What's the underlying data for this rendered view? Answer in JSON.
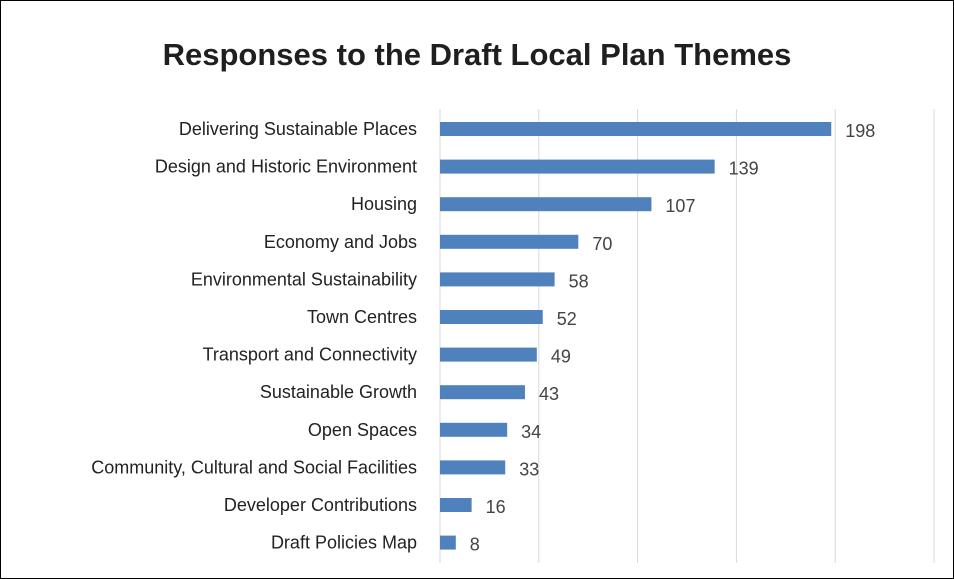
{
  "chart_data": {
    "type": "bar",
    "orientation": "horizontal",
    "title": "Responses to the Draft Local Plan Themes",
    "xlabel": "",
    "ylabel": "",
    "categories": [
      "Delivering Sustainable Places",
      "Design and Historic Environment",
      "Housing",
      "Economy and Jobs",
      "Environmental Sustainability",
      "Town Centres",
      "Transport and Connectivity",
      "Sustainable Growth",
      "Open Spaces",
      "Community, Cultural and Social Facilities",
      "Developer Contributions",
      "Draft Policies Map"
    ],
    "values": [
      198,
      139,
      107,
      70,
      58,
      52,
      49,
      43,
      34,
      33,
      16,
      8
    ],
    "data_labels": [
      "198",
      "139",
      "107",
      "70",
      "58",
      "52",
      "49",
      "43",
      "34",
      "33",
      "16",
      "8"
    ],
    "xlim": [
      0,
      250
    ],
    "x_gridlines": [
      0,
      50,
      100,
      150,
      200,
      250
    ],
    "grid": "vertical",
    "legend": "none",
    "bar_color": "#4f81bd",
    "gridline_color": "#d9d9d9"
  }
}
